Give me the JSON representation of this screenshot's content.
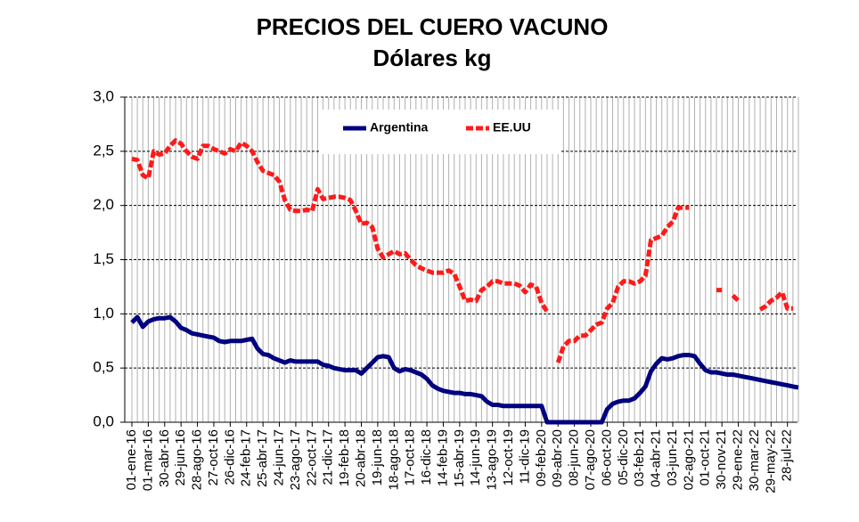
{
  "chart_data": {
    "type": "line",
    "title": "PRECIOS DEL CUERO VACUNO",
    "subtitle": "Dólares kg",
    "categories": [
      "01-ene-16",
      null,
      null,
      "01-mar-16",
      null,
      null,
      "30-abr-16",
      null,
      null,
      "29-jun-16",
      null,
      null,
      "28-ago-16",
      null,
      null,
      "27-oct-16",
      null,
      null,
      "26-dic-16",
      null,
      null,
      "24-feb-17",
      null,
      null,
      "25-abr-17",
      null,
      null,
      "24-jun-17",
      null,
      null,
      "23-ago-17",
      null,
      null,
      "22-oct-17",
      null,
      null,
      "21-dic-17",
      null,
      null,
      "19-feb-18",
      null,
      null,
      "20-abr-18",
      null,
      null,
      "19-jun-18",
      null,
      null,
      "18-ago-18",
      null,
      null,
      "17-oct-18",
      null,
      null,
      "16-dic-18",
      null,
      null,
      "14-feb-19",
      null,
      null,
      "15-abr-19",
      null,
      null,
      "14-jun-19",
      null,
      null,
      "13-ago-19",
      null,
      null,
      "12-oct-19",
      null,
      null,
      "11-dic-19",
      null,
      null,
      "09-feb-20",
      null,
      null,
      "09-abr-20",
      null,
      null,
      "08-jun-20",
      null,
      null,
      "07-ago-20",
      null,
      null,
      "06-oct-20",
      null,
      null,
      "05-dic-20",
      null,
      null,
      "03-feb-21",
      null,
      null,
      "04-abr-21",
      null,
      null,
      "03-jun-21",
      null,
      null,
      "02-ago-21",
      null,
      null,
      "01-oct-21",
      null,
      null,
      "30-nov-21",
      null,
      null,
      "29-ene-22",
      null,
      null,
      "30-mar-22",
      null,
      null,
      "29-may-22",
      null,
      null,
      "28-jul-22",
      null,
      null
    ],
    "series": [
      {
        "name": "Argentina",
        "color": "#000080",
        "values": [
          0.92,
          0.97,
          0.88,
          0.93,
          0.95,
          0.96,
          0.96,
          0.97,
          0.93,
          0.87,
          0.85,
          0.82,
          0.81,
          0.8,
          0.79,
          0.78,
          0.75,
          0.74,
          0.75,
          0.75,
          0.75,
          0.76,
          0.77,
          0.68,
          0.63,
          0.62,
          0.59,
          0.57,
          0.55,
          0.57,
          0.56,
          0.56,
          0.56,
          0.56,
          0.56,
          0.53,
          0.52,
          0.5,
          0.49,
          0.48,
          0.48,
          0.48,
          0.45,
          0.5,
          0.55,
          0.6,
          0.61,
          0.6,
          0.5,
          0.47,
          0.49,
          0.48,
          0.46,
          0.44,
          0.4,
          0.34,
          0.31,
          0.29,
          0.28,
          0.27,
          0.27,
          0.26,
          0.26,
          0.25,
          0.24,
          0.19,
          0.16,
          0.16,
          0.15,
          0.15,
          0.15,
          0.15,
          0.15,
          0.15,
          0.15,
          0.15,
          0,
          0,
          0,
          0,
          0,
          0,
          0,
          0,
          0,
          0,
          0,
          0.12,
          0.17,
          0.19,
          0.2,
          0.2,
          0.22,
          0.27,
          0.33,
          0.47,
          0.54,
          0.59,
          0.58,
          0.59,
          0.61,
          0.62,
          0.62,
          0.61,
          0.54,
          0.48,
          0.46,
          0.46,
          0.45,
          0.44,
          0.44,
          0.43,
          0.42,
          0.41,
          0.4,
          0.39,
          0.38,
          0.37,
          0.36,
          0.35,
          0.34,
          0.33,
          0.32
        ]
      },
      {
        "name": "EE.UU",
        "color": "#ff1a1a",
        "values": [
          2.43,
          2.42,
          2.28,
          2.25,
          2.5,
          2.47,
          2.48,
          2.55,
          2.6,
          2.57,
          2.5,
          2.45,
          2.43,
          2.55,
          2.55,
          2.52,
          2.5,
          2.48,
          2.52,
          2.5,
          2.58,
          2.55,
          2.5,
          2.4,
          2.32,
          2.3,
          2.28,
          2.22,
          2.05,
          1.96,
          1.95,
          1.95,
          1.96,
          1.95,
          2.15,
          2.06,
          2.07,
          2.08,
          2.08,
          2.07,
          2.05,
          1.95,
          1.83,
          1.84,
          1.8,
          1.6,
          1.52,
          1.55,
          1.58,
          1.55,
          1.56,
          1.5,
          1.45,
          1.42,
          1.4,
          1.38,
          1.38,
          1.38,
          1.4,
          1.37,
          1.25,
          1.12,
          1.13,
          1.12,
          1.22,
          1.25,
          1.3,
          1.3,
          1.28,
          1.28,
          1.28,
          1.26,
          1.2,
          1.27,
          1.25,
          1.1,
          1.02,
          null,
          0.55,
          0.7,
          0.75,
          0.75,
          0.8,
          0.8,
          0.85,
          0.9,
          0.92,
          1.05,
          1.1,
          1.25,
          1.3,
          1.3,
          1.28,
          1.3,
          1.35,
          1.68,
          1.7,
          1.72,
          1.8,
          1.85,
          1.98,
          1.98,
          1.98,
          null,
          null,
          null,
          null,
          1.22,
          1.22,
          null,
          1.17,
          1.12,
          null,
          null,
          null,
          1.04,
          1.07,
          1.12,
          1.15,
          1.2,
          1.05,
          1.05,
          null
        ],
        "dashed": true
      }
    ],
    "ylim": [
      0,
      3
    ],
    "yticks": [
      {
        "value": 0,
        "label": "0,0"
      },
      {
        "value": 0.5,
        "label": "0,5"
      },
      {
        "value": 1,
        "label": "1,0"
      },
      {
        "value": 1.5,
        "label": "1,5"
      },
      {
        "value": 2,
        "label": "2,0"
      },
      {
        "value": 2.5,
        "label": "2,5"
      },
      {
        "value": 3,
        "label": "3,0"
      }
    ],
    "grid": true,
    "legend": "top"
  }
}
